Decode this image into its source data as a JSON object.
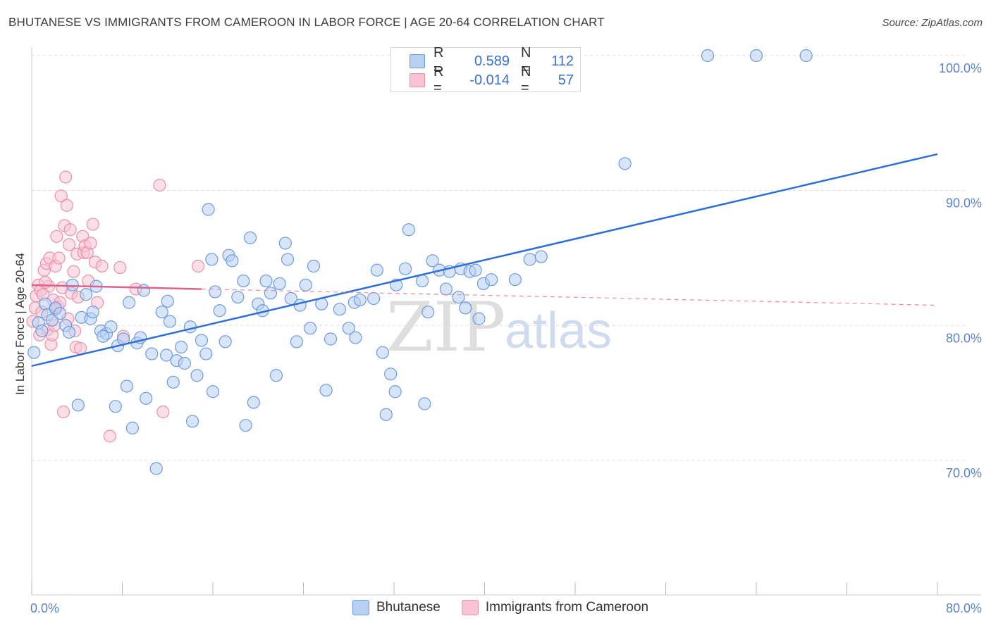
{
  "title": "BHUTANESE VS IMMIGRANTS FROM CAMEROON IN LABOR FORCE | AGE 20-64 CORRELATION CHART",
  "source": "Source: ZipAtlas.com",
  "watermark": {
    "zip": "ZIP",
    "atlas": "atlas"
  },
  "legend": {
    "r_label": "R =",
    "n_label": "N =",
    "rows": [
      {
        "name": "Bhutanese",
        "r": "0.589",
        "n": "112",
        "fill": "#b8d0f2",
        "stroke": "#6b9ae0"
      },
      {
        "name": "Immigrants from Cameroon",
        "r": "-0.014",
        "n": "57",
        "fill": "#f8c4d4",
        "stroke": "#e890aa"
      }
    ]
  },
  "chart_data": {
    "type": "scatter",
    "xlabel": "",
    "ylabel": "In Labor Force | Age 20-64",
    "xlim": [
      0,
      80
    ],
    "ylim": [
      61,
      102
    ],
    "x_tick_labels": [
      {
        "v": 0,
        "label": "0.0%"
      },
      {
        "v": 80,
        "label": "80.0%"
      }
    ],
    "y_ticks": [
      {
        "v": 70,
        "label": "70.0%"
      },
      {
        "v": 80,
        "label": "80.0%"
      },
      {
        "v": 90,
        "label": "90.0%"
      },
      {
        "v": 100,
        "label": "100.0%"
      }
    ],
    "x_minor_ticks": [
      0,
      8,
      16,
      24,
      32,
      40,
      48,
      56,
      64,
      72,
      80
    ],
    "series": [
      {
        "name": "Bhutanese",
        "color": "#6b9ae0",
        "fill": "#b8d0f2",
        "trend": {
          "x0": 0,
          "y0": 77.0,
          "x1": 80,
          "y1": 92.7
        },
        "points": [
          [
            0.2,
            78.0
          ],
          [
            0.6,
            80.2
          ],
          [
            0.9,
            79.6
          ],
          [
            1.2,
            81.6
          ],
          [
            1.4,
            80.8
          ],
          [
            1.8,
            80.4
          ],
          [
            2.1,
            81.3
          ],
          [
            2.5,
            80.9
          ],
          [
            3.0,
            80.0
          ],
          [
            3.3,
            79.5
          ],
          [
            4.1,
            74.1
          ],
          [
            4.4,
            80.6
          ],
          [
            4.8,
            82.3
          ],
          [
            5.2,
            80.5
          ],
          [
            5.4,
            81.0
          ],
          [
            5.7,
            82.9
          ],
          [
            6.1,
            79.6
          ],
          [
            6.6,
            79.4
          ],
          [
            7.0,
            79.9
          ],
          [
            7.4,
            74.0
          ],
          [
            7.6,
            78.5
          ],
          [
            8.1,
            79.0
          ],
          [
            8.4,
            75.5
          ],
          [
            8.6,
            81.7
          ],
          [
            8.9,
            72.4
          ],
          [
            9.3,
            78.7
          ],
          [
            9.6,
            79.1
          ],
          [
            9.9,
            82.6
          ],
          [
            10.1,
            74.6
          ],
          [
            10.6,
            77.9
          ],
          [
            11.0,
            69.4
          ],
          [
            11.5,
            81.0
          ],
          [
            11.9,
            77.8
          ],
          [
            12.2,
            80.3
          ],
          [
            12.5,
            75.8
          ],
          [
            12.8,
            77.4
          ],
          [
            13.2,
            78.4
          ],
          [
            13.5,
            77.2
          ],
          [
            14.0,
            79.9
          ],
          [
            14.2,
            72.9
          ],
          [
            14.6,
            76.3
          ],
          [
            15.0,
            78.9
          ],
          [
            15.4,
            77.9
          ],
          [
            15.6,
            88.6
          ],
          [
            15.9,
            84.9
          ],
          [
            16.2,
            82.5
          ],
          [
            16.6,
            81.1
          ],
          [
            17.1,
            78.8
          ],
          [
            17.4,
            85.2
          ],
          [
            17.7,
            84.8
          ],
          [
            18.2,
            82.1
          ],
          [
            18.7,
            83.3
          ],
          [
            18.9,
            72.6
          ],
          [
            19.3,
            86.5
          ],
          [
            19.6,
            74.3
          ],
          [
            20.0,
            81.6
          ],
          [
            20.4,
            81.1
          ],
          [
            20.7,
            83.3
          ],
          [
            21.1,
            82.4
          ],
          [
            21.6,
            76.3
          ],
          [
            21.9,
            83.1
          ],
          [
            22.4,
            86.1
          ],
          [
            22.9,
            82.0
          ],
          [
            23.4,
            78.8
          ],
          [
            23.7,
            81.5
          ],
          [
            24.2,
            83.0
          ],
          [
            24.6,
            79.8
          ],
          [
            24.9,
            84.4
          ],
          [
            25.6,
            81.6
          ],
          [
            26.0,
            75.2
          ],
          [
            27.2,
            81.2
          ],
          [
            28.0,
            79.8
          ],
          [
            28.5,
            81.7
          ],
          [
            28.6,
            79.1
          ],
          [
            29.0,
            81.9
          ],
          [
            30.2,
            82.0
          ],
          [
            30.5,
            84.1
          ],
          [
            31.3,
            73.4
          ],
          [
            31.7,
            76.4
          ],
          [
            32.1,
            75.1
          ],
          [
            32.2,
            83.0
          ],
          [
            33.0,
            84.2
          ],
          [
            33.3,
            87.1
          ],
          [
            34.5,
            83.3
          ],
          [
            34.7,
            74.2
          ],
          [
            35.0,
            81.0
          ],
          [
            35.4,
            84.8
          ],
          [
            36.0,
            84.1
          ],
          [
            36.6,
            82.7
          ],
          [
            36.9,
            84.0
          ],
          [
            37.7,
            82.1
          ],
          [
            37.9,
            84.2
          ],
          [
            38.3,
            81.3
          ],
          [
            38.7,
            84.0
          ],
          [
            39.2,
            84.1
          ],
          [
            39.5,
            80.5
          ],
          [
            39.9,
            83.1
          ],
          [
            40.6,
            83.4
          ],
          [
            42.7,
            83.4
          ],
          [
            44.0,
            84.9
          ],
          [
            45.0,
            85.1
          ],
          [
            52.4,
            92.0
          ],
          [
            59.7,
            100.0
          ],
          [
            64.0,
            100.0
          ],
          [
            68.4,
            100.0
          ],
          [
            3.6,
            83.0
          ],
          [
            6.3,
            79.2
          ],
          [
            12.0,
            81.8
          ],
          [
            26.4,
            79.0
          ],
          [
            16.0,
            75.1
          ],
          [
            22.6,
            84.9
          ],
          [
            31.0,
            78.0
          ]
        ]
      },
      {
        "name": "Immigrants from Cameroon",
        "color": "#e890aa",
        "fill": "#f8c4d4",
        "trend": {
          "x0": 0,
          "y0": 83.0,
          "x1": 15,
          "y1": 82.7
        },
        "trend_dashed": {
          "x0": 15,
          "y0": 82.7,
          "x1": 80,
          "y1": 81.5
        },
        "points": [
          [
            0.1,
            80.3
          ],
          [
            0.3,
            81.3
          ],
          [
            0.4,
            82.2
          ],
          [
            0.6,
            83.0
          ],
          [
            0.8,
            82.6
          ],
          [
            0.9,
            81.0
          ],
          [
            1.1,
            84.1
          ],
          [
            1.3,
            84.6
          ],
          [
            1.4,
            79.7
          ],
          [
            1.5,
            82.9
          ],
          [
            1.6,
            85.0
          ],
          [
            1.7,
            78.6
          ],
          [
            1.8,
            79.3
          ],
          [
            1.9,
            81.9
          ],
          [
            2.0,
            80.0
          ],
          [
            2.1,
            84.4
          ],
          [
            2.2,
            86.6
          ],
          [
            2.3,
            81.4
          ],
          [
            2.4,
            85.0
          ],
          [
            2.5,
            81.7
          ],
          [
            2.6,
            89.6
          ],
          [
            2.7,
            82.8
          ],
          [
            2.8,
            73.6
          ],
          [
            2.9,
            87.4
          ],
          [
            3.0,
            91.0
          ],
          [
            3.1,
            88.9
          ],
          [
            3.3,
            86.0
          ],
          [
            3.4,
            87.1
          ],
          [
            3.5,
            82.4
          ],
          [
            3.7,
            84.0
          ],
          [
            3.8,
            79.6
          ],
          [
            3.9,
            78.4
          ],
          [
            4.0,
            85.3
          ],
          [
            4.1,
            82.1
          ],
          [
            4.3,
            78.3
          ],
          [
            4.5,
            86.6
          ],
          [
            4.6,
            85.4
          ],
          [
            4.7,
            85.9
          ],
          [
            4.9,
            85.4
          ],
          [
            5.0,
            83.3
          ],
          [
            5.2,
            86.1
          ],
          [
            5.4,
            87.5
          ],
          [
            5.6,
            84.7
          ],
          [
            5.8,
            81.7
          ],
          [
            6.2,
            84.4
          ],
          [
            6.9,
            71.8
          ],
          [
            7.8,
            84.3
          ],
          [
            8.1,
            79.2
          ],
          [
            9.2,
            82.7
          ],
          [
            11.3,
            90.4
          ],
          [
            11.6,
            73.6
          ],
          [
            14.7,
            84.4
          ],
          [
            0.7,
            79.3
          ],
          [
            1.0,
            82.3
          ],
          [
            2.1,
            81.2
          ],
          [
            3.2,
            80.5
          ],
          [
            1.2,
            83.2
          ]
        ]
      }
    ]
  }
}
